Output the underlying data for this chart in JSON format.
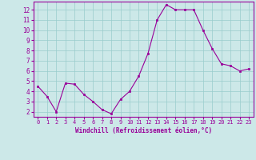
{
  "x": [
    0,
    1,
    2,
    3,
    4,
    5,
    6,
    7,
    8,
    9,
    10,
    11,
    12,
    13,
    14,
    15,
    16,
    17,
    18,
    19,
    20,
    21,
    22,
    23
  ],
  "y": [
    4.5,
    3.5,
    2.0,
    4.8,
    4.7,
    3.7,
    3.0,
    2.2,
    1.8,
    3.2,
    4.0,
    5.5,
    7.7,
    11.0,
    12.5,
    12.0,
    12.0,
    12.0,
    10.0,
    8.2,
    6.7,
    6.5,
    6.0,
    6.2
  ],
  "xlabel": "Windchill (Refroidissement éolien,°C)",
  "line_color": "#990099",
  "marker_color": "#990099",
  "bg_color": "#cce8e8",
  "grid_color": "#99cccc",
  "tick_label_color": "#990099",
  "xlim": [
    -0.5,
    23.5
  ],
  "ylim": [
    1.5,
    12.8
  ],
  "yticks": [
    2,
    3,
    4,
    5,
    6,
    7,
    8,
    9,
    10,
    11,
    12
  ],
  "xticks": [
    0,
    1,
    2,
    3,
    4,
    5,
    6,
    7,
    8,
    9,
    10,
    11,
    12,
    13,
    14,
    15,
    16,
    17,
    18,
    19,
    20,
    21,
    22,
    23
  ],
  "xlabel_color": "#990099",
  "border_color": "#990099"
}
